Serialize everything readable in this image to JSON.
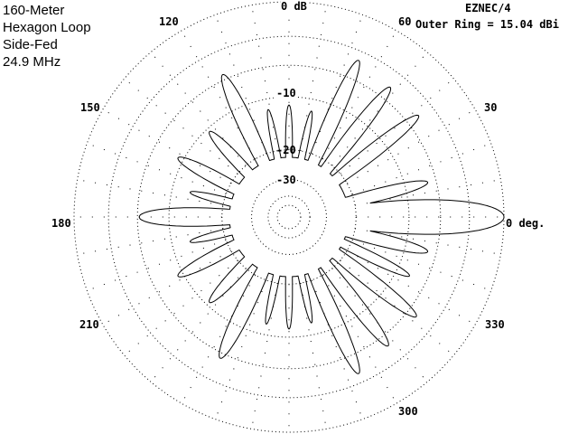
{
  "header": {
    "title_lines": [
      "160-Meter",
      "Hexagon Loop",
      "Side-Fed",
      "24.9 MHz"
    ],
    "program": "EZNEC/4",
    "outer_ring": "Outer Ring = 15.04 dBi"
  },
  "chart_data": {
    "type": "polar",
    "scale": "ARRL log",
    "outer_ring_dbi": 15.04,
    "ring_labels": [
      "0 dB",
      "-10",
      "-20",
      "-30"
    ],
    "ring_values_db": [
      0,
      -3,
      -6,
      -10,
      -20,
      -30,
      -40,
      -50
    ],
    "angle_labels": [
      {
        "angle": 0,
        "text": "0 deg."
      },
      {
        "angle": 30,
        "text": "30"
      },
      {
        "angle": 60,
        "text": "60"
      },
      {
        "angle": 120,
        "text": "120"
      },
      {
        "angle": 150,
        "text": "150"
      },
      {
        "angle": 180,
        "text": "180"
      },
      {
        "angle": 210,
        "text": "210"
      },
      {
        "angle": 300,
        "text": "300"
      },
      {
        "angle": 330,
        "text": "330"
      }
    ],
    "lobes": [
      {
        "azimuth_deg": 0,
        "gain_db": 0,
        "width_deg": 13
      },
      {
        "azimuth_deg": 14,
        "gain_db": -7.0,
        "width_deg": 7
      },
      {
        "azimuth_deg": 38,
        "gain_db": -4.6,
        "width_deg": 7
      },
      {
        "azimuth_deg": 52,
        "gain_db": -4.6,
        "width_deg": 7
      },
      {
        "azimuth_deg": 66,
        "gain_db": -3.9,
        "width_deg": 7
      },
      {
        "azimuth_deg": 78,
        "gain_db": -11.8,
        "width_deg": 5
      },
      {
        "azimuth_deg": 90,
        "gain_db": -11.2,
        "width_deg": 5
      },
      {
        "azimuth_deg": 101,
        "gain_db": -11.6,
        "width_deg": 5
      },
      {
        "azimuth_deg": 115,
        "gain_db": -5.4,
        "width_deg": 8
      },
      {
        "azimuth_deg": 133,
        "gain_db": -10.5,
        "width_deg": 8
      },
      {
        "azimuth_deg": 152,
        "gain_db": -9.2,
        "width_deg": 8
      },
      {
        "azimuth_deg": 166,
        "gain_db": -12.8,
        "width_deg": 6
      },
      {
        "azimuth_deg": 180,
        "gain_db": -6.2,
        "width_deg": 10
      },
      {
        "azimuth_deg": 194,
        "gain_db": -12.8,
        "width_deg": 6
      },
      {
        "azimuth_deg": 208,
        "gain_db": -9.2,
        "width_deg": 8
      },
      {
        "azimuth_deg": 227,
        "gain_db": -10.5,
        "width_deg": 8
      },
      {
        "azimuth_deg": 244,
        "gain_db": -5.4,
        "width_deg": 8
      },
      {
        "azimuth_deg": 258,
        "gain_db": -11.6,
        "width_deg": 5
      },
      {
        "azimuth_deg": 270,
        "gain_db": -11.2,
        "width_deg": 5
      },
      {
        "azimuth_deg": 282,
        "gain_db": -11.8,
        "width_deg": 5
      },
      {
        "azimuth_deg": 294,
        "gain_db": -3.9,
        "width_deg": 7
      },
      {
        "azimuth_deg": 307.6,
        "gain_db": -4.8,
        "width_deg": 7
      },
      {
        "azimuth_deg": 322,
        "gain_db": -4.9,
        "width_deg": 7
      },
      {
        "azimuth_deg": 334,
        "gain_db": -8.1,
        "width_deg": 6
      },
      {
        "azimuth_deg": 346,
        "gain_db": -7.0,
        "width_deg": 7
      }
    ],
    "null_floor_db": -22,
    "colors": {
      "trace": "#000000",
      "grid": "#000000",
      "background": "#ffffff"
    }
  }
}
